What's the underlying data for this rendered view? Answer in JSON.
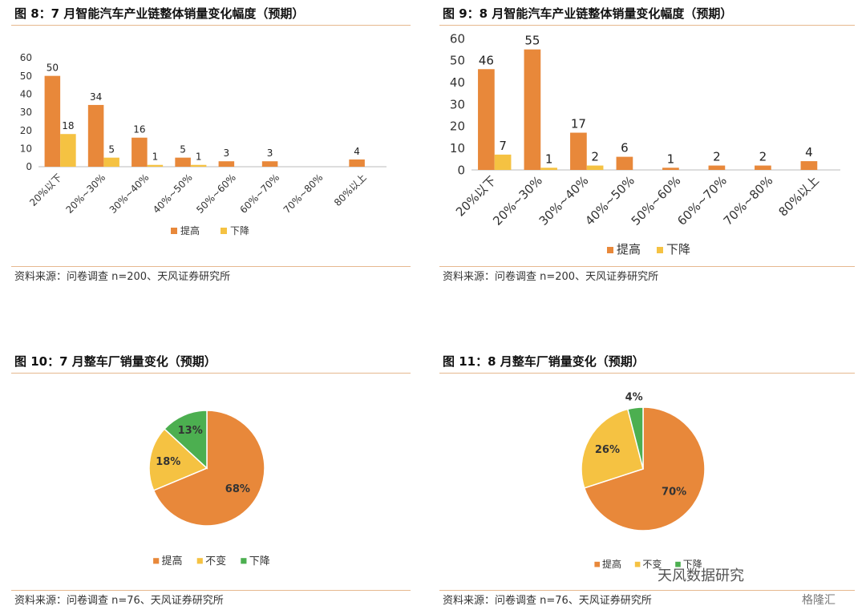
{
  "panels": [
    {
      "title": "图 8：7 月智能汽车产业链整体销量变化幅度（预期）",
      "source": "资料来源：问卷调查 n=200、天风证券研究所"
    },
    {
      "title": "图 9：8 月智能汽车产业链整体销量变化幅度（预期）",
      "source": "资料来源：问卷调查 n=200、天风证券研究所"
    },
    {
      "title": "图 10：7 月整车厂销量变化（预期）",
      "source": "资料来源：问卷调查 n=76、天风证券研究所"
    },
    {
      "title": "图 11：8 月整车厂销量变化（预期）",
      "source": "资料来源：问卷调查 n=76、天风证券研究所"
    }
  ],
  "watermark": {
    "text": "天风数据研究",
    "logo_text": "格隆汇"
  },
  "colors": {
    "orange": "#e8883a",
    "yellow": "#f5c242",
    "green": "#4caf50"
  },
  "chart_data": [
    {
      "type": "bar",
      "categories": [
        "20%以下",
        "20%~30%",
        "30%~40%",
        "40%~50%",
        "50%~60%",
        "60%~70%",
        "70%~80%",
        "80%以上"
      ],
      "series": [
        {
          "name": "提高",
          "values": [
            50,
            34,
            16,
            5,
            3,
            3,
            0,
            4
          ],
          "labels": [
            "50",
            "34",
            "16",
            "5",
            "3",
            "3",
            "",
            "4"
          ]
        },
        {
          "name": "下降",
          "values": [
            18,
            5,
            1,
            1,
            0,
            0,
            0,
            0
          ],
          "labels": [
            "18",
            "5",
            "1",
            "1",
            "",
            "",
            "",
            ""
          ]
        }
      ],
      "ylim": [
        0,
        60
      ],
      "yticks": [
        "0",
        "10",
        "20",
        "30",
        "40",
        "50",
        "60"
      ],
      "legend": "bottom"
    },
    {
      "type": "bar",
      "categories": [
        "20%以下",
        "20%~30%",
        "30%~40%",
        "40%~50%",
        "50%~60%",
        "60%~70%",
        "70%~80%",
        "80%以上"
      ],
      "series": [
        {
          "name": "提高",
          "values": [
            46,
            55,
            17,
            6,
            1,
            2,
            2,
            4
          ],
          "labels": [
            "46",
            "55",
            "17",
            "6",
            "1",
            "2",
            "2",
            "4"
          ]
        },
        {
          "name": "下降",
          "values": [
            7,
            1,
            2,
            0,
            0,
            0,
            0,
            0
          ],
          "labels": [
            "7",
            "1",
            "2",
            "",
            "",
            "",
            "",
            ""
          ]
        }
      ],
      "ylim": [
        0,
        60
      ],
      "yticks": [
        "0",
        "10",
        "20",
        "30",
        "40",
        "50",
        "60"
      ],
      "legend": "bottom"
    },
    {
      "type": "pie",
      "slices": [
        {
          "name": "提高",
          "value": 68,
          "label": "68%"
        },
        {
          "name": "不变",
          "value": 18,
          "label": "18%"
        },
        {
          "name": "下降",
          "value": 13,
          "label": "13%"
        }
      ],
      "legend": "bottom"
    },
    {
      "type": "pie",
      "slices": [
        {
          "name": "提高",
          "value": 70,
          "label": "70%"
        },
        {
          "name": "不变",
          "value": 26,
          "label": "26%"
        },
        {
          "name": "下降",
          "value": 4,
          "label": "4%"
        }
      ],
      "legend": "bottom"
    }
  ]
}
